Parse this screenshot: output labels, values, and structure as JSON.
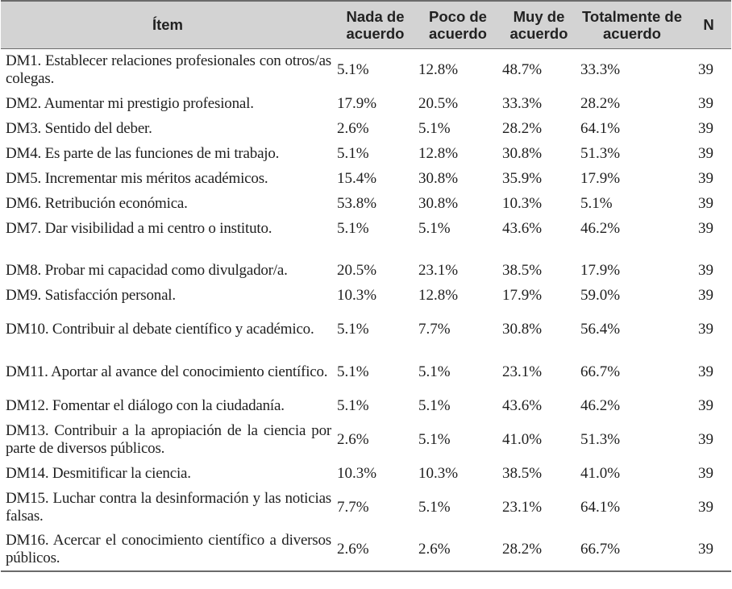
{
  "header": {
    "item": "Ítem",
    "nada": [
      "Nada de",
      "acuerdo"
    ],
    "poco": [
      "Poco de",
      "acuerdo"
    ],
    "muy": [
      "Muy de",
      "acuerdo"
    ],
    "totalmente": [
      "Totalmente de",
      "acuerdo"
    ],
    "n": "N"
  },
  "rows": [
    {
      "item": "DM1. Establecer relaciones profesionales con otros/as colegas.",
      "nada": "5.1%",
      "poco": "12.8%",
      "muy": "48.7%",
      "total": "33.3%",
      "n": "39"
    },
    {
      "item": "DM2. Aumentar mi prestigio profesional.",
      "nada": "17.9%",
      "poco": "20.5%",
      "muy": "33.3%",
      "total": "28.2%",
      "n": "39"
    },
    {
      "item": "DM3. Sentido del deber.",
      "nada": "2.6%",
      "poco": "5.1%",
      "muy": "28.2%",
      "total": "64.1%",
      "n": "39"
    },
    {
      "item": "DM4. Es parte de las funciones de mi trabajo.",
      "nada": "5.1%",
      "poco": "12.8%",
      "muy": "30.8%",
      "total": "51.3%",
      "n": "39"
    },
    {
      "item": "DM5. Incrementar mis méritos académicos.",
      "nada": "15.4%",
      "poco": "30.8%",
      "muy": "35.9%",
      "total": "17.9%",
      "n": "39"
    },
    {
      "item": "DM6. Retribución económica.",
      "nada": "53.8%",
      "poco": "30.8%",
      "muy": "10.3%",
      "total": "5.1%",
      "n": "39"
    },
    {
      "item": "DM7. Dar visibilidad a mi centro o instituto.",
      "nada": "5.1%",
      "poco": "5.1%",
      "muy": "43.6%",
      "total": "46.2%",
      "n": "39"
    },
    {
      "item": "DM8. Probar mi capacidad como divulgador/a.",
      "nada": "20.5%",
      "poco": "23.1%",
      "muy": "38.5%",
      "total": "17.9%",
      "n": "39"
    },
    {
      "item": "DM9. Satisfacción personal.",
      "nada": "10.3%",
      "poco": "12.8%",
      "muy": "17.9%",
      "total": "59.0%",
      "n": "39"
    },
    {
      "item": "DM10. Contribuir al debate científico y académico.",
      "nada": "5.1%",
      "poco": "7.7%",
      "muy": "30.8%",
      "total": "56.4%",
      "n": "39"
    },
    {
      "item": "DM11. Aportar al avance del conocimiento científico.",
      "nada": "5.1%",
      "poco": "5.1%",
      "muy": "23.1%",
      "total": "66.7%",
      "n": "39"
    },
    {
      "item": "DM12. Fomentar el diálogo con la ciudadanía.",
      "nada": "5.1%",
      "poco": "5.1%",
      "muy": "43.6%",
      "total": "46.2%",
      "n": "39"
    },
    {
      "item": "DM13. Contribuir a la apropiación de la ciencia por parte de diversos públicos.",
      "nada": "2.6%",
      "poco": "5.1%",
      "muy": "41.0%",
      "total": "51.3%",
      "n": "39"
    },
    {
      "item": "DM14. Desmitificar la ciencia.",
      "nada": "10.3%",
      "poco": "10.3%",
      "muy": "38.5%",
      "total": "41.0%",
      "n": "39"
    },
    {
      "item": "DM15. Luchar contra la desinformación y las noticias falsas.",
      "nada": "7.7%",
      "poco": "5.1%",
      "muy": "23.1%",
      "total": "64.1%",
      "n": "39"
    },
    {
      "item": "DM16. Acercar el conocimiento científico a diversos públicos.",
      "nada": "2.6%",
      "poco": "2.6%",
      "muy": "28.2%",
      "total": "66.7%",
      "n": "39"
    }
  ]
}
